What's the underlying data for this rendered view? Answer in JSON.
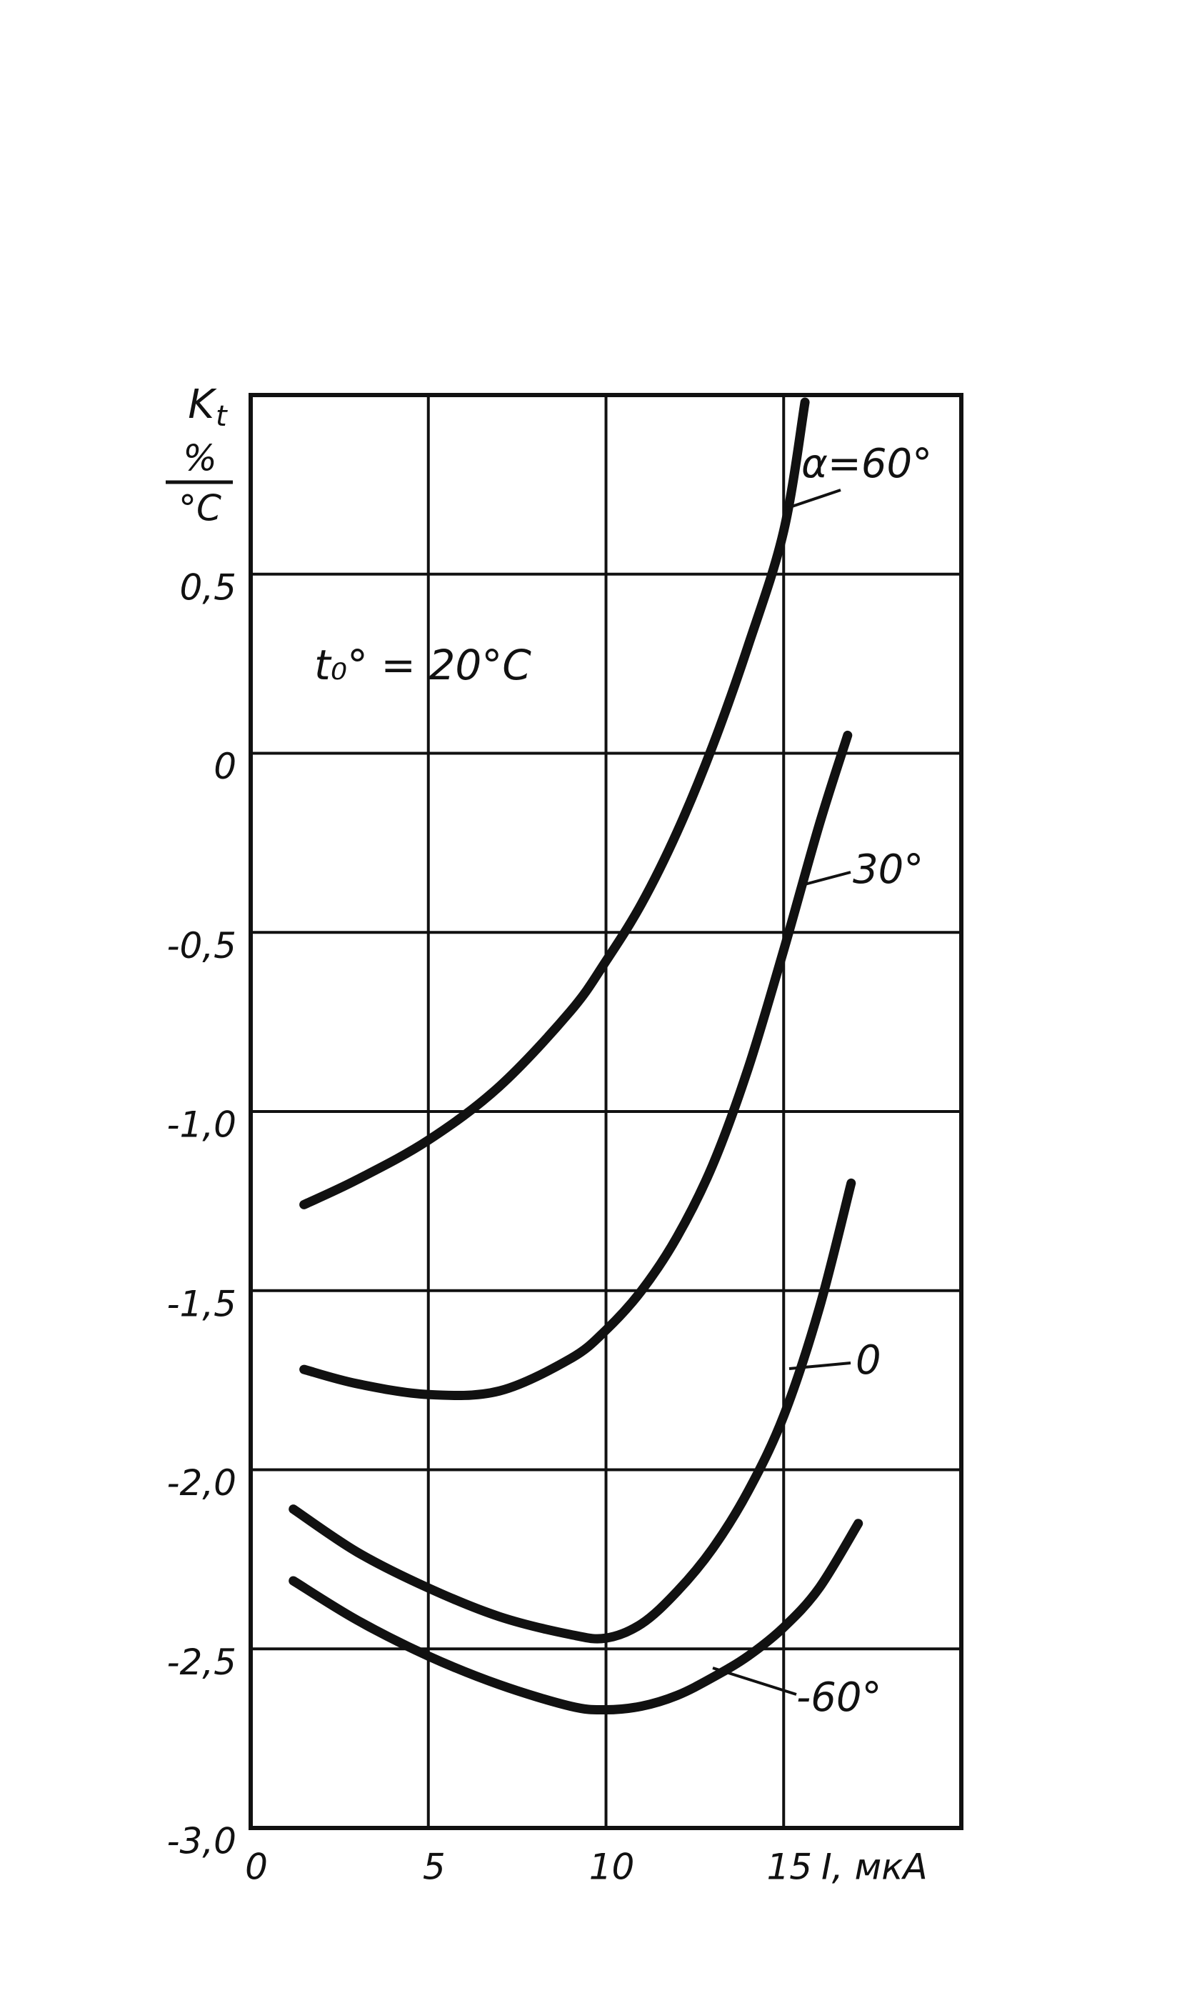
{
  "chart_data": {
    "type": "line",
    "y_label": {
      "symbol": "K",
      "subscript": "t",
      "unit_numerator": "%",
      "unit_denominator": "°C"
    },
    "x_label": "I, мкА",
    "annotation": "t₀° = 20°C",
    "xlim": [
      0,
      20
    ],
    "ylim": [
      -3,
      1
    ],
    "xticks": [
      0,
      5,
      10,
      15
    ],
    "yticks": [
      {
        "value": 0.5,
        "label": "0,5"
      },
      0,
      {
        "value": -0.5,
        "label": "-0,5"
      },
      {
        "value": -1.0,
        "label": "-1,0"
      },
      {
        "value": -1.5,
        "label": "-1,5"
      },
      {
        "value": -2.0,
        "label": "-2,0"
      },
      {
        "value": -2.5,
        "label": "-2,5"
      },
      {
        "value": -3.0,
        "label": "-3,0"
      }
    ],
    "grid": true,
    "series": [
      {
        "name": "α=60°",
        "color": "#111111",
        "x": [
          1.5,
          3,
          5,
          7,
          9,
          10,
          11,
          12,
          13,
          14,
          15,
          15.6
        ],
        "values": [
          -1.26,
          -1.19,
          -1.08,
          -0.93,
          -0.72,
          -0.58,
          -0.42,
          -0.22,
          0.02,
          0.3,
          0.62,
          0.98
        ]
      },
      {
        "name": "30°",
        "color": "#111111",
        "x": [
          1.5,
          3,
          5,
          7,
          9,
          10,
          11,
          12,
          13,
          14,
          15,
          16,
          16.8
        ],
        "values": [
          -1.72,
          -1.76,
          -1.79,
          -1.78,
          -1.69,
          -1.61,
          -1.5,
          -1.35,
          -1.15,
          -0.88,
          -0.55,
          -0.2,
          0.05
        ]
      },
      {
        "name": "0",
        "color": "#111111",
        "x": [
          1.2,
          3,
          5,
          7,
          9,
          10,
          11,
          12,
          13,
          14,
          15,
          16,
          16.9
        ],
        "values": [
          -2.11,
          -2.23,
          -2.33,
          -2.41,
          -2.46,
          -2.47,
          -2.43,
          -2.34,
          -2.22,
          -2.06,
          -1.85,
          -1.55,
          -1.2
        ]
      },
      {
        "name": "-60°",
        "color": "#111111",
        "x": [
          1.2,
          3,
          5,
          7,
          9,
          10,
          11,
          12,
          13,
          14,
          15,
          16,
          17.1
        ],
        "values": [
          -2.31,
          -2.42,
          -2.52,
          -2.6,
          -2.66,
          -2.67,
          -2.66,
          -2.63,
          -2.58,
          -2.52,
          -2.44,
          -2.33,
          -2.15
        ]
      }
    ]
  }
}
